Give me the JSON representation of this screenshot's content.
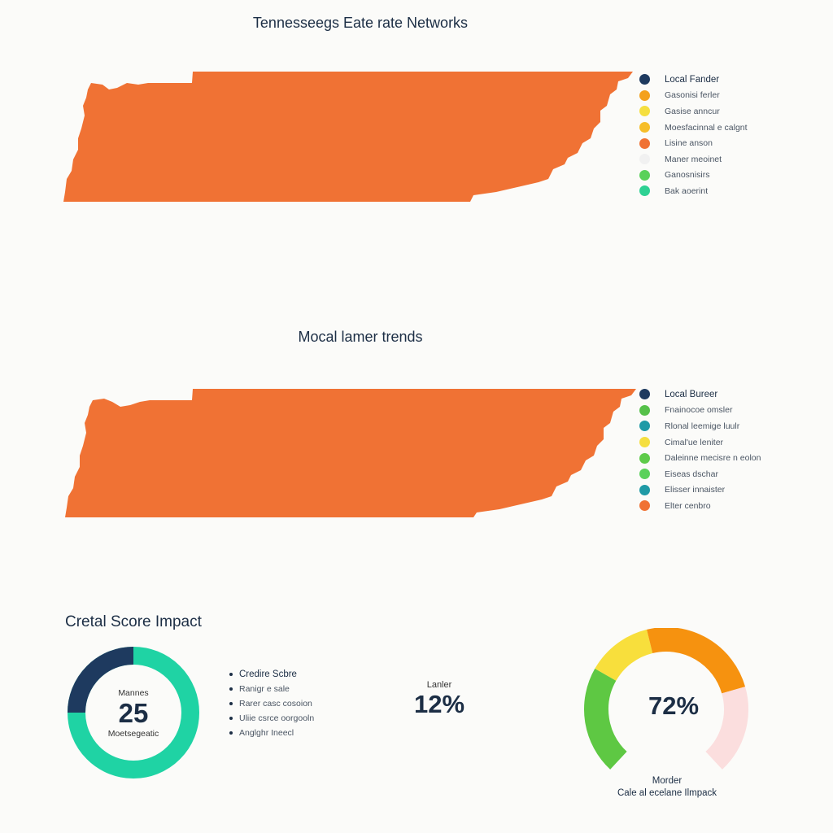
{
  "chart_data": [
    {
      "type": "map",
      "title": "Tennesseegs Eate rate Networks",
      "region": "Tennessee",
      "fill_color": "#f07234",
      "legend": [
        {
          "label": "Local Fander",
          "color": "#1e3a5f"
        },
        {
          "label": "Gasonisi ferler",
          "color": "#f4a11c"
        },
        {
          "label": "Gasise anncur",
          "color": "#f5df3f"
        },
        {
          "label": "Moesfacinnal e calgnt",
          "color": "#f6be2a"
        },
        {
          "label": "Lisine anson",
          "color": "#f07234"
        },
        {
          "label": "Maner meoinet",
          "color": "#f1f1f1"
        },
        {
          "label": "Ganosnisirs",
          "color": "#5ad15a"
        },
        {
          "label": "Bak aoerint",
          "color": "#2ed193"
        }
      ]
    },
    {
      "type": "map",
      "title": "Mocal lamer trends",
      "region": "Tennessee",
      "fill_color": "#f07234",
      "legend": [
        {
          "label": "Local Bureer",
          "color": "#1e3a5f"
        },
        {
          "label": "Fnainocoe omsler",
          "color": "#56c14a"
        },
        {
          "label": "Rlonal leemige luulr",
          "color": "#1f9aa6"
        },
        {
          "label": "Cimal'ue leniter",
          "color": "#f5df3f"
        },
        {
          "label": "Daleinne mecisre n eolon",
          "color": "#5ecb4a"
        },
        {
          "label": "Eiseas dschar",
          "color": "#5ad15a"
        },
        {
          "label": "Elisser innaister",
          "color": "#1f9aa6"
        },
        {
          "label": "Elter cenbro",
          "color": "#f07234"
        }
      ]
    },
    {
      "type": "donut",
      "title": "Cretal Score Impact",
      "center_label": "Mannes",
      "center_value": "25",
      "center_sublabel": "Moetsegeatic",
      "value_percent": 25,
      "colors": {
        "value": "#1e3a5f",
        "rest": "#1fd3a4"
      },
      "bullets": [
        "Credire Scbre",
        "Ranigr e sale",
        "Rarer casc cosoion",
        "Uliie csrce oorgooln",
        "Anglghr Ineecl"
      ]
    },
    {
      "type": "stat",
      "label": "Lanler",
      "value": "12%"
    },
    {
      "type": "gauge",
      "value": "72%",
      "caption_top": "Morder",
      "caption_bottom": "Cale al ecelane Ilmpack",
      "segments": [
        {
          "color": "#5ec843",
          "share": 0.28
        },
        {
          "color": "#f8df3c",
          "share": 0.17
        },
        {
          "color": "#f6920f",
          "share": 0.32
        },
        {
          "color": "#fbdede",
          "share": 0.23
        }
      ]
    }
  ]
}
